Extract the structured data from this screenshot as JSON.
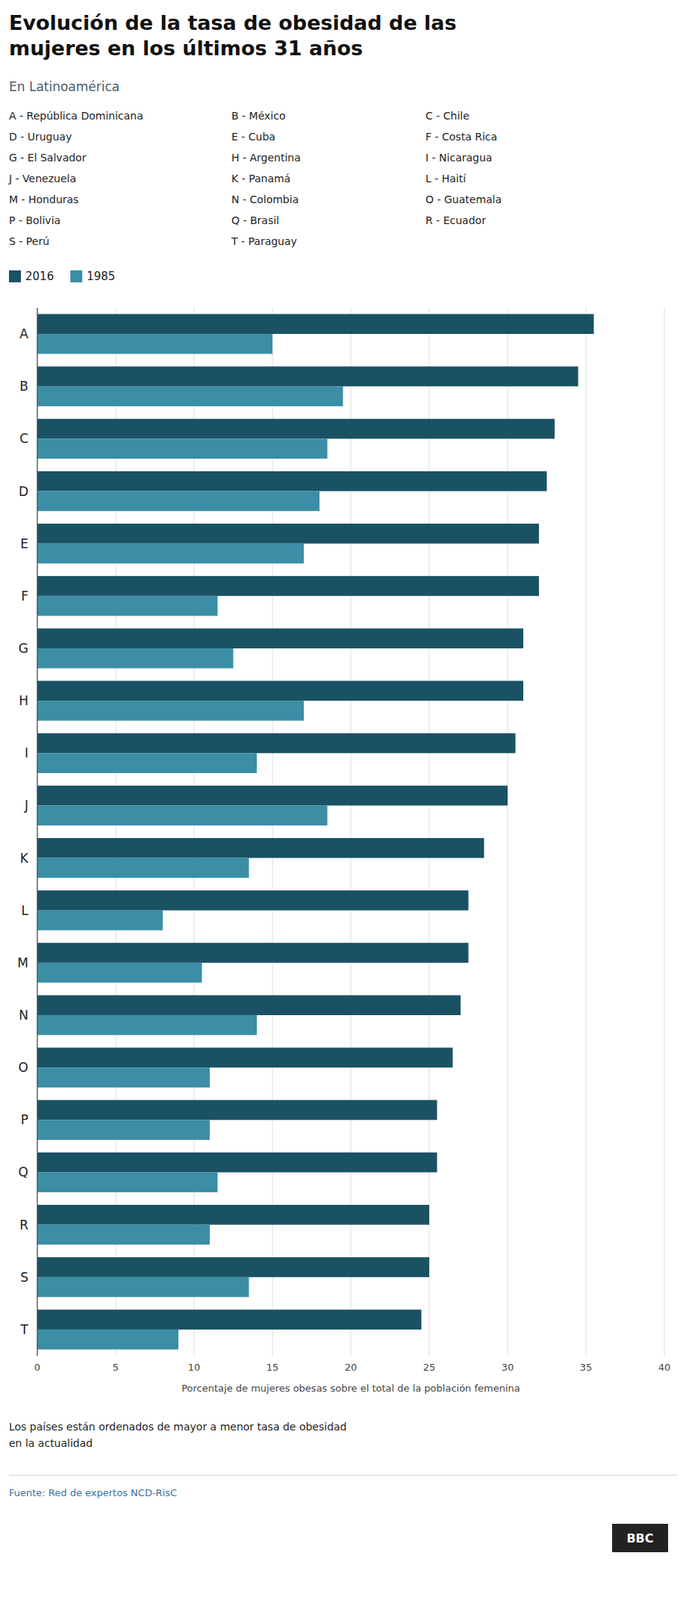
{
  "chart_data": {
    "type": "bar",
    "orientation": "horizontal",
    "title": "Evolución de la tasa de obesidad de las\nmujeres en los últimos 31 años",
    "subtitle": "En Latinoamérica",
    "categories": [
      "A",
      "B",
      "C",
      "D",
      "E",
      "F",
      "G",
      "H",
      "I",
      "J",
      "K",
      "L",
      "M",
      "N",
      "O",
      "P",
      "Q",
      "R",
      "S",
      "T"
    ],
    "series": [
      {
        "name": "2016",
        "color": "#1a5264",
        "values": [
          35.5,
          34.5,
          33.0,
          32.5,
          32.0,
          32.0,
          31.0,
          31.0,
          30.5,
          30.0,
          28.5,
          27.5,
          27.5,
          27.0,
          26.5,
          25.5,
          25.5,
          25.0,
          25.0,
          24.5
        ]
      },
      {
        "name": "1985",
        "color": "#3b8ea6",
        "values": [
          15.0,
          19.5,
          18.5,
          18.0,
          17.0,
          11.5,
          12.5,
          17.0,
          14.0,
          18.5,
          13.5,
          8.0,
          10.5,
          14.0,
          11.0,
          11.0,
          11.5,
          11.0,
          13.5,
          9.0
        ]
      }
    ],
    "annotations": [
      "A - República Dominicana",
      "B - México",
      "C - Chile",
      "D - Uruguay",
      "E - Cuba",
      "F - Costa Rica",
      "G - El Salvador",
      "H - Argentina",
      "I - Nicaragua",
      "J - Venezuela",
      "K - Panamá",
      "L - Haití",
      "M - Honduras",
      "N - Colombia",
      "O - Guatemala",
      "P - Bolivia",
      "Q - Brasil",
      "R - Ecuador",
      "S - Perú",
      "T - Paraguay"
    ],
    "xlabel": "Porcentaje de mujeres obesas sobre el total de la población femenina",
    "xlim": [
      0,
      40
    ],
    "xticks": [
      0,
      5,
      10,
      15,
      20,
      25,
      30,
      35,
      40
    ],
    "grid": true,
    "legend": "top",
    "note": "Los países están ordenados de mayor a menor tasa de obesidad\nen la actualidad",
    "source": "Fuente: Red de expertos NCD-RisC",
    "credit": "BBC"
  }
}
